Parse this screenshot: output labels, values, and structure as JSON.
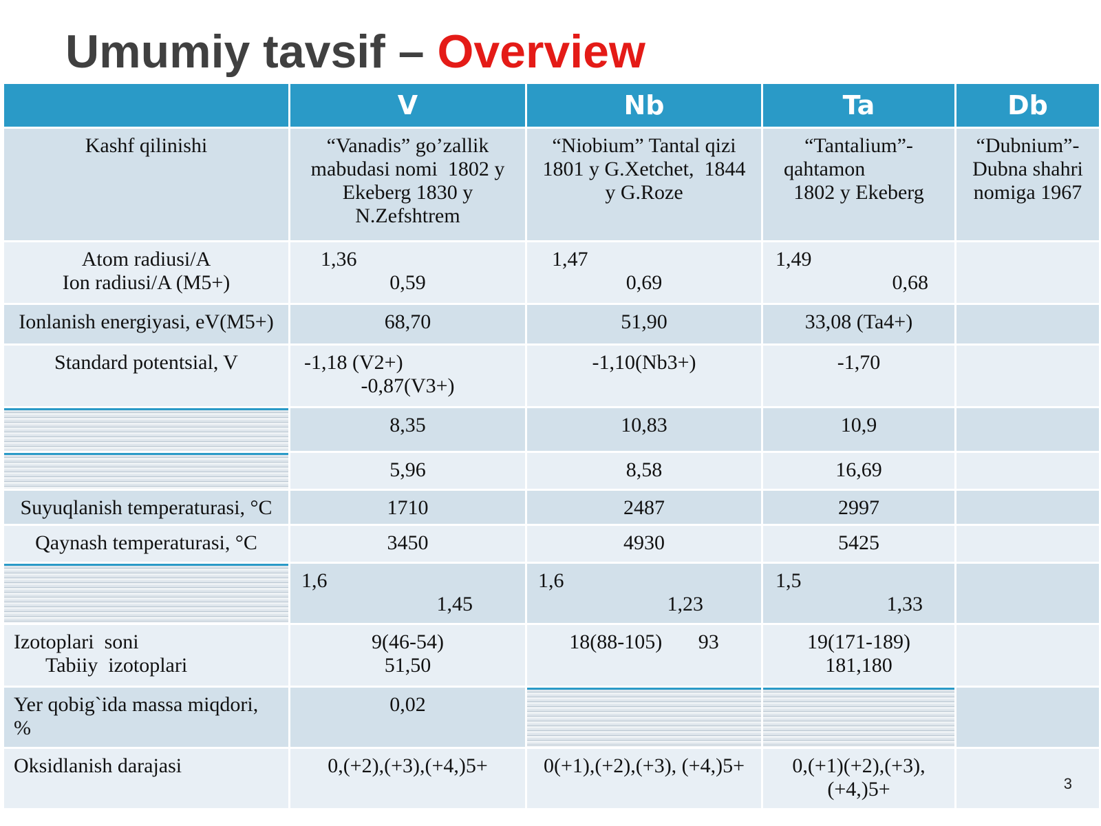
{
  "title": {
    "main": "Umumiy tavsif –",
    "highlight": "Overview"
  },
  "table": {
    "header": [
      "V",
      "Nb",
      "Ta",
      "Db"
    ],
    "rows": [
      [
        [
          "Kashf qilinishi"
        ],
        [
          "“Vanadis” go’zallik",
          "mabudasi nomi  1802 y",
          "Ekeberg 1830 y",
          "N.Zefshtrem"
        ],
        [
          "“Niobium” Tantal qizi",
          "1801 y G.Xetchet,  1844",
          "y G.Roze"
        ],
        [
          "“Tantalium”-",
          "qahtamon",
          "1802 y Ekeberg"
        ],
        [
          "“Dubnium”-",
          "Dubna shahri",
          "nomiga 1967"
        ]
      ],
      [
        [
          "Atom radiusi/A",
          "Ion radiusi/A (M5+)"
        ],
        [
          "1,36",
          "0,59"
        ],
        [
          "1,47",
          "0,69"
        ],
        [
          "1,49",
          "0,68"
        ],
        []
      ],
      [
        [
          "Ionlanish energiyasi, eV(M5+)"
        ],
        [
          "68,70"
        ],
        [
          "51,90"
        ],
        [
          "33,08 (Ta4+)"
        ],
        []
      ],
      [
        [
          "Standard potentsial, V"
        ],
        [
          "-1,18 (V2+)",
          "-0,87(V3+)"
        ],
        [
          "-1,10(Nb3+)"
        ],
        [
          "-1,70"
        ],
        []
      ],
      [
        [],
        [
          "8,35"
        ],
        [
          "10,83"
        ],
        [
          "10,9"
        ],
        []
      ],
      [
        [],
        [
          "5,96"
        ],
        [
          "8,58"
        ],
        [
          "16,69"
        ],
        []
      ],
      [
        [
          "Suyuqlanish temperaturasi, °C"
        ],
        [
          "1710"
        ],
        [
          "2487"
        ],
        [
          "2997"
        ],
        []
      ],
      [
        [
          "Qaynash temperaturasi, °C"
        ],
        [
          "3450"
        ],
        [
          "4930"
        ],
        [
          "5425"
        ],
        []
      ],
      [
        [],
        [
          "1,6",
          "1,45"
        ],
        [
          "1,6",
          "1,23"
        ],
        [
          "1,5",
          "1,33"
        ],
        []
      ],
      [
        [
          "Izotoplari  soni",
          "Tabiiy  izotoplari"
        ],
        [
          "9(46-54)",
          "51,50"
        ],
        [
          "18(88-105)       93"
        ],
        [
          "19(171-189)",
          "181,180"
        ],
        []
      ],
      [
        [
          "Yer qobig`ida massa miqdori,",
          "%"
        ],
        [
          "0,02"
        ],
        [],
        [],
        []
      ],
      [
        [
          "Oksidlanish darajasi"
        ],
        [
          "0,(+2),(+3),(+4,)5+"
        ],
        [
          "0(+1),(+2),(+3), (+4,)5+"
        ],
        [
          "0,(+1)(+2),(+3),",
          "(+4,)5+"
        ],
        []
      ]
    ]
  },
  "page_number": "3"
}
